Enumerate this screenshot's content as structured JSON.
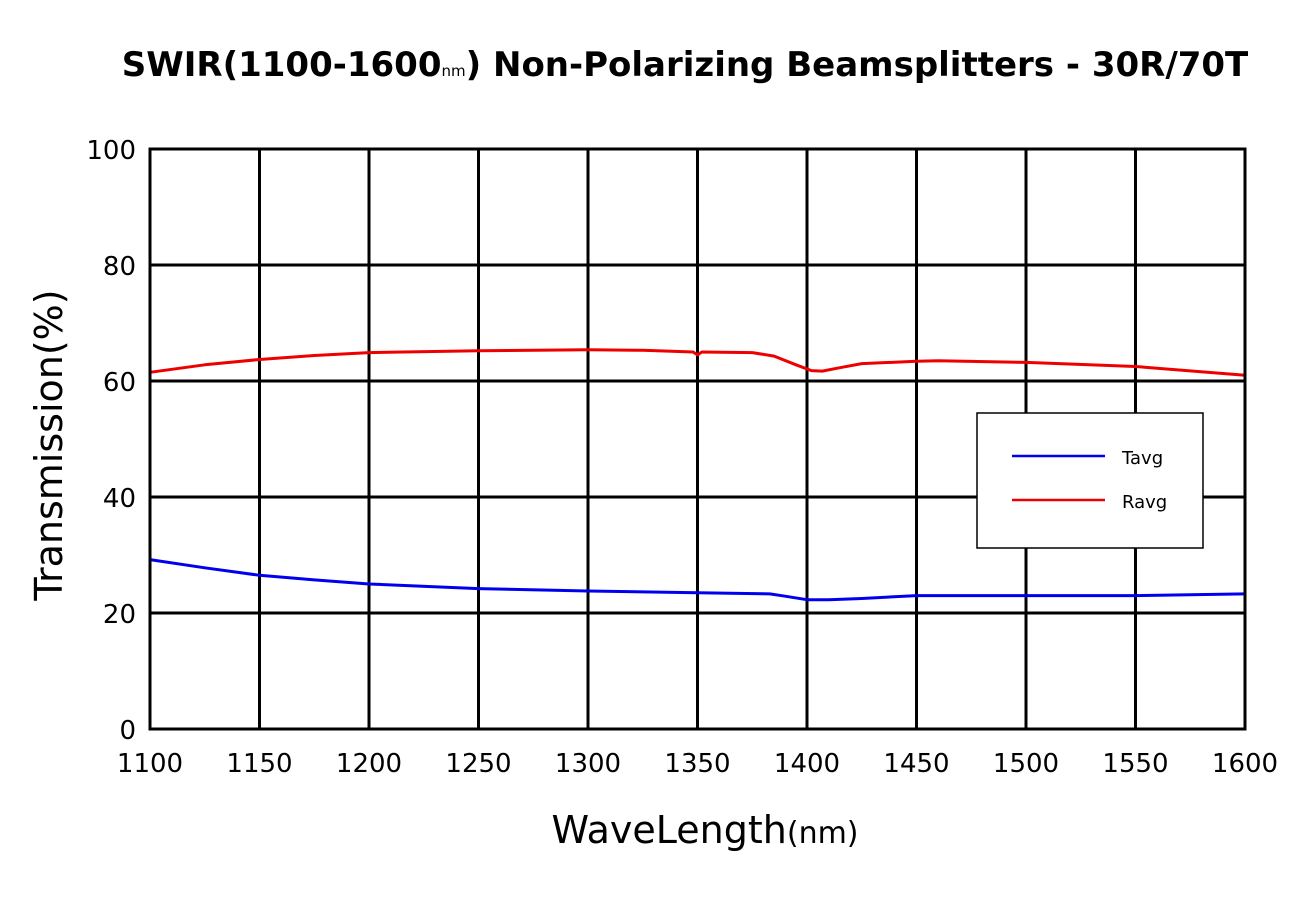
{
  "chart_data": {
    "type": "line",
    "title": "SWIR(1100-1600nm) Non-Polarizing Beamsplitters - 30R/70T",
    "title_parts": {
      "prefix": "SWIR(1100-1600",
      "unit": "nm",
      "suffix": ") Non-Polarizing Beamsplitters - 30R/70T"
    },
    "xlabel": "WaveLength(nm)",
    "xlabel_parts": {
      "main": "WaveLength",
      "unit": "(nm)"
    },
    "ylabel": "Transmission(%)",
    "xlim": [
      1100,
      1600
    ],
    "ylim": [
      0,
      100
    ],
    "x_ticks": [
      1100,
      1150,
      1200,
      1250,
      1300,
      1350,
      1400,
      1450,
      1500,
      1550,
      1600
    ],
    "y_ticks": [
      0,
      20,
      40,
      60,
      80,
      100
    ],
    "grid": true,
    "legend_position": "right",
    "series": [
      {
        "name": "Tavg",
        "color": "#0000ee",
        "x": [
          1100,
          1125,
          1150,
          1175,
          1200,
          1250,
          1300,
          1350,
          1383,
          1390,
          1400,
          1410,
          1425,
          1450,
          1500,
          1550,
          1600
        ],
        "y": [
          29.2,
          27.8,
          26.5,
          25.7,
          25.0,
          24.2,
          23.8,
          23.5,
          23.3,
          22.9,
          22.3,
          22.3,
          22.5,
          23.0,
          23.0,
          23.0,
          23.3
        ]
      },
      {
        "name": "Ravg",
        "color": "#ee0000",
        "x": [
          1100,
          1125,
          1150,
          1175,
          1200,
          1250,
          1300,
          1325,
          1348,
          1350,
          1352,
          1375,
          1385,
          1395,
          1402,
          1407,
          1415,
          1425,
          1450,
          1460,
          1500,
          1550,
          1600
        ],
        "y": [
          61.5,
          62.8,
          63.7,
          64.4,
          64.9,
          65.2,
          65.4,
          65.3,
          65.0,
          64.5,
          65.0,
          64.9,
          64.3,
          62.8,
          61.8,
          61.7,
          62.3,
          63.0,
          63.4,
          63.5,
          63.2,
          62.5,
          61.0
        ]
      }
    ]
  }
}
